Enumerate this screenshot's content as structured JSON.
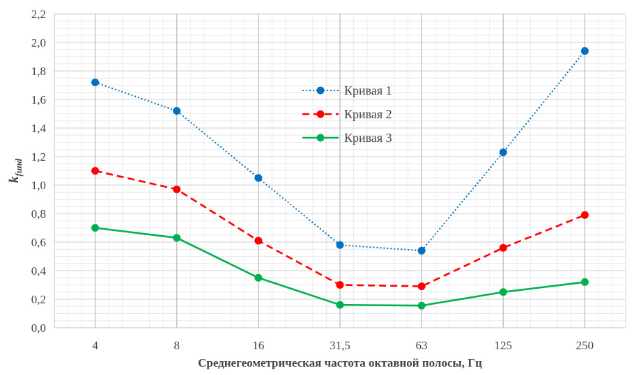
{
  "chart_data": {
    "type": "line",
    "categories": [
      "4",
      "8",
      "16",
      "31,5",
      "63",
      "125",
      "250"
    ],
    "series": [
      {
        "name": "Кривая 1",
        "values": [
          1.72,
          1.52,
          1.05,
          0.58,
          0.54,
          1.23,
          1.94
        ],
        "color": "#0070C0",
        "style": "dotted"
      },
      {
        "name": "Кривая 2",
        "values": [
          1.1,
          0.97,
          0.61,
          0.3,
          0.29,
          0.56,
          0.79
        ],
        "color": "#FF0000",
        "style": "dashed"
      },
      {
        "name": "Кривая 3",
        "values": [
          0.7,
          0.63,
          0.35,
          0.16,
          0.155,
          0.25,
          0.32
        ],
        "color": "#00B050",
        "style": "solid"
      }
    ],
    "xlabel": "Среднегеометрическая частота октавной полосы, Гц",
    "ylabel_main": "k",
    "ylabel_sub": "fund",
    "ylim": [
      0,
      2.2
    ],
    "yticks": [
      "0,0",
      "0,2",
      "0,4",
      "0,6",
      "0,8",
      "1,0",
      "1,2",
      "1,4",
      "1,6",
      "1,8",
      "2,0",
      "2,2"
    ],
    "grid": true,
    "legend_position": "center"
  }
}
